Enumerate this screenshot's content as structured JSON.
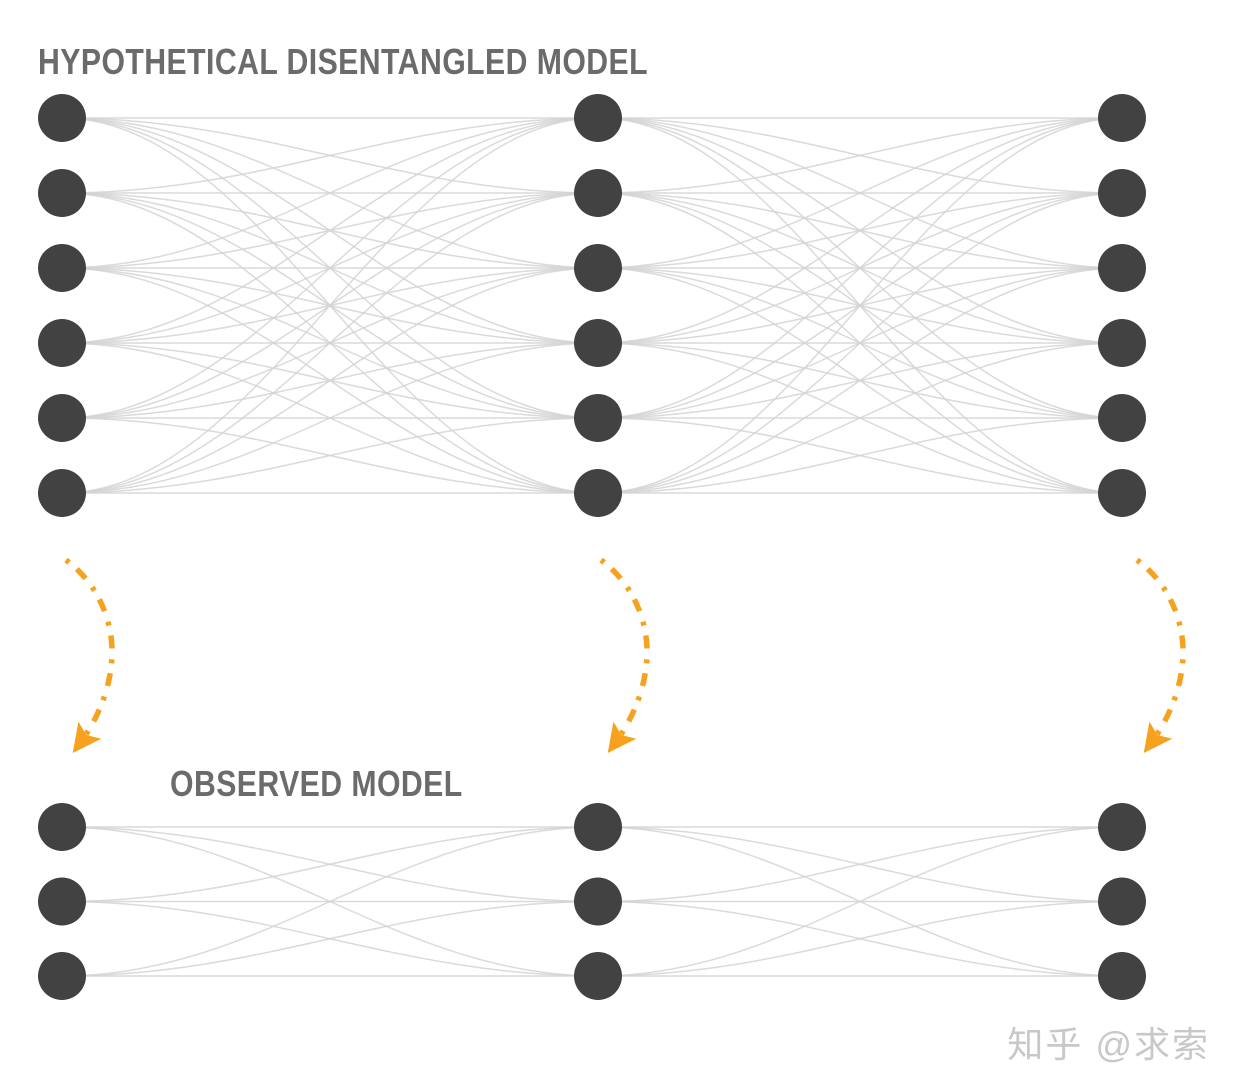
{
  "diagram": {
    "type": "neural-network-comparison",
    "networks": [
      {
        "id": "hypothetical-disentangled-model",
        "title": "HYPOTHETICAL DISENTANGLED MODEL",
        "layers": [
          6,
          6,
          6
        ],
        "connectivity": "fully-connected-between-adjacent-layers"
      },
      {
        "id": "observed-model",
        "title": "OBSERVED MODEL",
        "layers": [
          3,
          3,
          3
        ],
        "connectivity": "fully-connected-between-adjacent-layers"
      }
    ],
    "arrows": {
      "count": 3,
      "direction": "top-network-maps-to-bottom-network",
      "style": "dashed",
      "color": "#F6A21E"
    },
    "colors": {
      "node": "#424242",
      "edge": "#d4d4d4",
      "title": "#6b6b6b"
    }
  },
  "watermark": {
    "brand": "知乎",
    "handle": "@求索",
    "color": "#c8c8c8"
  }
}
